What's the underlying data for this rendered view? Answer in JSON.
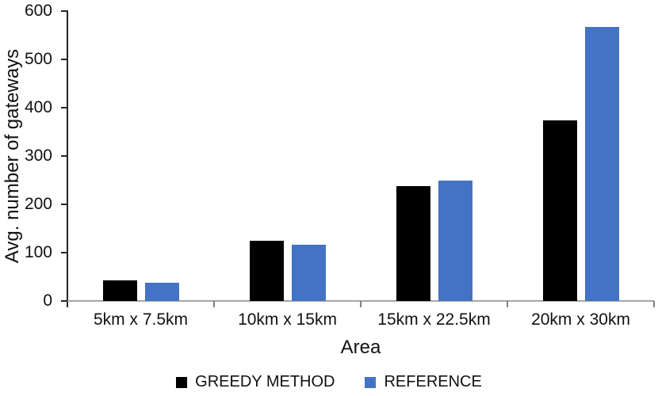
{
  "chart_data": {
    "type": "bar",
    "title": "",
    "xlabel": "Area",
    "ylabel": "Avg. number of gateways",
    "categories": [
      "5km x 7.5km",
      "10km x 15km",
      "15km x 22.5km",
      "20km x 30km"
    ],
    "series": [
      {
        "name": "GREEDY METHOD",
        "color": "#000000",
        "values": [
          43,
          124,
          237,
          374
        ]
      },
      {
        "name": "REFERENCE",
        "color": "#4472c4",
        "values": [
          38,
          117,
          250,
          567
        ]
      }
    ],
    "ylim": [
      0,
      600
    ],
    "yticks": [
      0,
      100,
      200,
      300,
      400,
      500,
      600
    ],
    "grid": false,
    "legend_position": "bottom"
  },
  "colors": {
    "greedy_bar": "#000000",
    "reference_bar": "#4472c4",
    "x_axis_line": "#a6a6a6",
    "y_axis_line": "#262626",
    "text": "#111111"
  }
}
